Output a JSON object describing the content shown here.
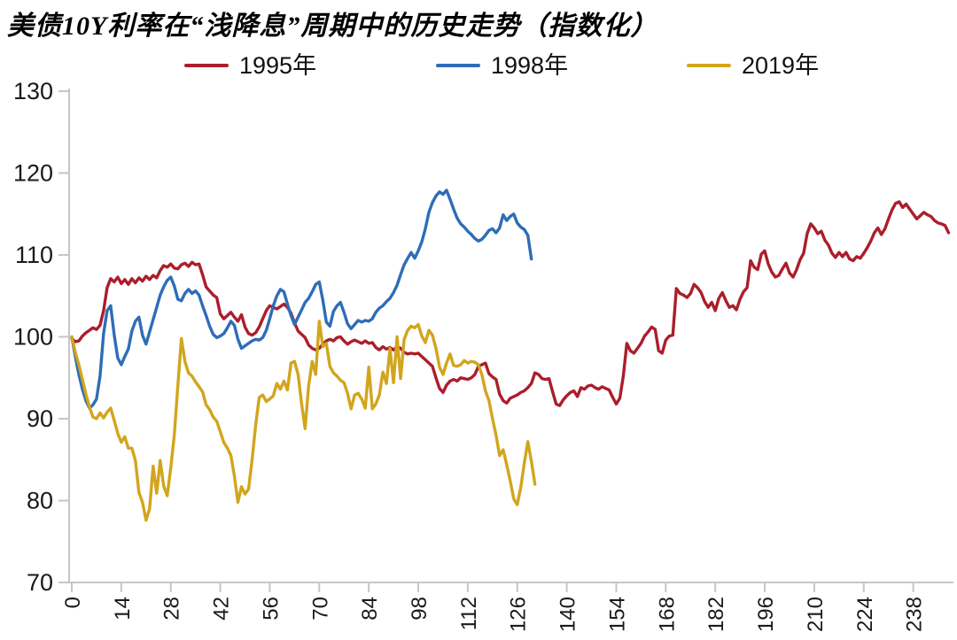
{
  "title": "美债10Y利率在“浅降息”周期中的历史走势（指数化）",
  "legend": [
    {
      "label": "1995年",
      "color": "#ab1e2c"
    },
    {
      "label": "1998年",
      "color": "#2e6db7"
    },
    {
      "label": "2019年",
      "color": "#d2a51d"
    }
  ],
  "axis": {
    "line_color": "#c6c6c6",
    "label_color": "#1a1a1a"
  },
  "chart_data": {
    "type": "line",
    "title": "美债10Y利率在“浅降息”周期中的历史走势（指数化）",
    "xlabel": "",
    "ylabel": "",
    "xlim": [
      0,
      250
    ],
    "ylim": [
      70,
      130
    ],
    "y_ticks": [
      70,
      80,
      90,
      100,
      110,
      120,
      130
    ],
    "x_ticks": [
      0,
      14,
      28,
      42,
      56,
      70,
      84,
      98,
      112,
      126,
      140,
      154,
      168,
      182,
      196,
      210,
      224,
      238
    ],
    "grid": false,
    "legend_position": "top",
    "x_start": 0,
    "x_step": 1,
    "series": [
      {
        "name": "1995年",
        "color": "#ab1e2c",
        "values": [
          99.8,
          99.4,
          99.5,
          100.1,
          100.5,
          100.8,
          101.1,
          100.9,
          101.4,
          103.2,
          106.0,
          107.1,
          106.7,
          107.3,
          106.5,
          107.0,
          106.4,
          107.1,
          106.6,
          107.2,
          106.8,
          107.4,
          107.0,
          107.5,
          107.2,
          108.1,
          108.7,
          108.5,
          108.9,
          108.4,
          108.3,
          108.8,
          109.0,
          108.6,
          109.1,
          108.8,
          108.9,
          107.6,
          106.1,
          105.6,
          105.1,
          104.8,
          102.8,
          102.2,
          102.6,
          103.0,
          102.4,
          101.9,
          102.7,
          101.2,
          100.4,
          100.2,
          100.5,
          101.2,
          102.2,
          103.2,
          103.8,
          103.6,
          103.4,
          103.7,
          104.0,
          103.6,
          102.9,
          101.7,
          100.7,
          100.3,
          99.9,
          99.0,
          98.6,
          98.4,
          98.6,
          99.1,
          99.5,
          99.7,
          99.5,
          99.9,
          100.0,
          99.5,
          99.1,
          99.4,
          99.6,
          99.4,
          99.2,
          99.5,
          99.2,
          99.3,
          98.7,
          98.4,
          98.8,
          98.5,
          98.7,
          98.4,
          98.8,
          98.6,
          98.1,
          97.9,
          98.0,
          97.9,
          98.0,
          97.6,
          97.2,
          96.8,
          96.4,
          95.0,
          93.7,
          93.2,
          94.1,
          94.6,
          94.8,
          94.6,
          95.0,
          94.9,
          94.8,
          95.0,
          95.4,
          96.4,
          96.6,
          96.8,
          95.5,
          95.1,
          94.8,
          93.0,
          92.2,
          91.9,
          92.5,
          92.7,
          92.9,
          93.2,
          93.4,
          93.8,
          94.3,
          95.6,
          95.4,
          94.9,
          94.8,
          94.9,
          93.3,
          91.8,
          91.6,
          92.3,
          92.8,
          93.2,
          93.4,
          92.7,
          93.8,
          93.6,
          94.0,
          94.1,
          93.8,
          93.6,
          93.9,
          93.7,
          93.5,
          92.6,
          91.8,
          92.5,
          95.2,
          99.2,
          98.3,
          98.0,
          98.6,
          99.2,
          100.1,
          100.6,
          101.2,
          100.9,
          98.3,
          98.0,
          99.6,
          100.1,
          100.2,
          105.9,
          105.3,
          105.1,
          104.8,
          105.3,
          106.4,
          106.0,
          105.4,
          104.3,
          103.6,
          104.2,
          103.2,
          104.7,
          105.4,
          104.4,
          103.6,
          103.8,
          103.3,
          104.6,
          105.5,
          106.0,
          109.3,
          108.5,
          108.2,
          110.1,
          110.5,
          108.9,
          107.9,
          107.3,
          107.5,
          108.3,
          109.0,
          107.8,
          107.3,
          108.2,
          109.4,
          110.2,
          112.6,
          113.8,
          113.3,
          112.6,
          112.9,
          111.8,
          111.2,
          110.2,
          109.7,
          110.3,
          109.8,
          110.3,
          109.5,
          109.3,
          109.8,
          109.6,
          110.2,
          110.9,
          111.7,
          112.7,
          113.3,
          112.5,
          113.2,
          114.4,
          115.5,
          116.3,
          116.5,
          115.8,
          116.2,
          115.6,
          115.0,
          114.4,
          114.8,
          115.2,
          114.9,
          114.7,
          114.2,
          113.9,
          113.8,
          113.6,
          112.7
        ]
      },
      {
        "name": "1998年",
        "color": "#2e6db7",
        "values": [
          100.0,
          97.6,
          95.4,
          93.6,
          92.2,
          91.3,
          91.7,
          92.4,
          95.2,
          100.4,
          103.2,
          103.8,
          100.2,
          97.4,
          96.6,
          97.6,
          98.5,
          100.7,
          101.9,
          102.4,
          100.2,
          99.1,
          100.6,
          102.1,
          103.6,
          105.1,
          106.1,
          106.9,
          107.3,
          106.2,
          104.6,
          104.4,
          105.3,
          105.8,
          105.3,
          105.6,
          105.1,
          103.8,
          102.6,
          101.3,
          100.3,
          99.9,
          100.1,
          100.4,
          101.1,
          101.9,
          101.4,
          99.7,
          98.6,
          98.9,
          99.2,
          99.5,
          99.7,
          99.6,
          99.9,
          100.8,
          102.2,
          103.8,
          105.0,
          105.8,
          105.5,
          104.0,
          102.6,
          101.5,
          102.4,
          103.3,
          104.2,
          104.7,
          105.5,
          106.4,
          106.7,
          104.5,
          101.8,
          101.3,
          103.1,
          103.8,
          104.2,
          103.0,
          101.6,
          101.0,
          101.5,
          102.0,
          101.8,
          102.0,
          101.9,
          102.2,
          103.0,
          103.5,
          103.8,
          104.3,
          104.7,
          105.4,
          106.3,
          107.6,
          108.8,
          109.6,
          110.3,
          109.6,
          110.5,
          111.6,
          113.2,
          115.2,
          116.4,
          117.2,
          117.7,
          117.4,
          117.9,
          116.8,
          115.6,
          114.5,
          113.8,
          113.4,
          112.9,
          112.5,
          112.0,
          111.7,
          111.9,
          112.4,
          113.0,
          113.2,
          112.7,
          113.3,
          114.9,
          114.2,
          114.7,
          115.0,
          113.9,
          113.4,
          113.1,
          112.4,
          109.5
        ]
      },
      {
        "name": "2019年",
        "color": "#d2a51d",
        "values": [
          100.0,
          98.1,
          96.6,
          94.8,
          93.0,
          91.4,
          90.2,
          90.0,
          90.7,
          90.1,
          90.8,
          91.3,
          89.8,
          88.2,
          87.1,
          87.8,
          86.4,
          86.4,
          84.9,
          81.0,
          79.8,
          77.6,
          79.0,
          84.2,
          80.9,
          84.9,
          81.8,
          80.6,
          84.0,
          88.0,
          94.0,
          99.8,
          97.0,
          95.6,
          95.2,
          94.5,
          93.9,
          93.3,
          91.7,
          91.1,
          90.2,
          89.7,
          88.4,
          87.1,
          86.4,
          85.5,
          83.0,
          79.8,
          81.7,
          80.8,
          81.4,
          85.0,
          89.2,
          92.6,
          92.9,
          92.1,
          92.4,
          92.8,
          94.3,
          93.6,
          94.6,
          93.5,
          96.8,
          97.0,
          95.4,
          91.8,
          88.8,
          94.0,
          97.0,
          95.4,
          101.9,
          98.8,
          99.2,
          96.4,
          95.6,
          95.2,
          94.7,
          94.4,
          93.1,
          91.2,
          92.9,
          93.1,
          92.4,
          91.3,
          96.3,
          91.2,
          91.8,
          92.9,
          95.7,
          94.3,
          98.6,
          94.4,
          100.0,
          94.9,
          99.7,
          100.8,
          101.3,
          101.1,
          101.5,
          100.1,
          99.3,
          100.8,
          100.2,
          98.6,
          96.3,
          95.4,
          96.8,
          97.9,
          96.5,
          96.4,
          96.6,
          97.1,
          96.8,
          97.0,
          96.9,
          96.6,
          95.4,
          93.4,
          92.2,
          90.0,
          88.0,
          85.5,
          86.2,
          84.4,
          82.4,
          80.2,
          79.5,
          81.6,
          84.6,
          87.2,
          84.8,
          82.0
        ]
      }
    ]
  }
}
